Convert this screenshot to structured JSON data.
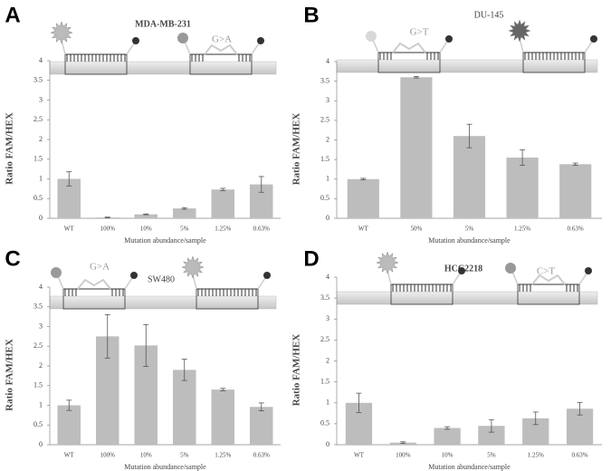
{
  "chart_data": [
    {
      "type": "bar",
      "panel_label": "A",
      "title": "MDA-MB-231",
      "annotation": "G>A",
      "ylabel": "Ratio FAM/HEX",
      "xlabel": "Mutation abundance/sample",
      "categories": [
        "WT",
        "100%",
        "10%",
        "5%",
        "1.25%",
        "0.63%"
      ],
      "values": [
        1.0,
        0.02,
        0.1,
        0.25,
        0.73,
        0.86
      ],
      "errors": [
        0.18,
        0.01,
        0.01,
        0.02,
        0.03,
        0.2
      ],
      "color": "#bdbdbd",
      "ylim": [
        0,
        4
      ],
      "yticks": [
        0,
        0.5,
        1,
        1.5,
        2,
        2.5,
        3,
        3.5,
        4
      ]
    },
    {
      "type": "bar",
      "panel_label": "B",
      "title": "DU-145",
      "annotation": "G>T",
      "ylabel": "Ratio FAM/HEX",
      "xlabel": "Mutation abundance/sample",
      "categories": [
        "WT",
        "50%",
        "5%",
        "1.25%",
        "0.63%"
      ],
      "values": [
        1.0,
        3.6,
        2.1,
        1.55,
        1.38
      ],
      "errors": [
        0.02,
        0.02,
        0.3,
        0.2,
        0.03
      ],
      "color": "#bdbdbd",
      "ylim": [
        0,
        4
      ],
      "yticks": [
        0,
        0.5,
        1,
        1.5,
        2,
        2.5,
        3,
        3.5,
        4
      ]
    },
    {
      "type": "bar",
      "panel_label": "C",
      "title": "SW480",
      "annotation": "G>A",
      "ylabel": "Ratio FAM/HEX",
      "xlabel": "Mutation abundance/sample",
      "categories": [
        "WT",
        "100%",
        "10%",
        "5%",
        "1.25%",
        "0.63%"
      ],
      "values": [
        1.0,
        2.75,
        2.52,
        1.9,
        1.4,
        0.96
      ],
      "errors": [
        0.13,
        0.55,
        0.53,
        0.27,
        0.03,
        0.1
      ],
      "color": "#bdbdbd",
      "ylim": [
        0,
        4
      ],
      "yticks": [
        0,
        0.5,
        1,
        1.5,
        2,
        2.5,
        3,
        3.5,
        4
      ]
    },
    {
      "type": "bar",
      "panel_label": "D",
      "title": "HCC2218",
      "annotation": "C>T",
      "ylabel": "Ratio FAM/HEX",
      "xlabel": "Mutation abundance/sample",
      "categories": [
        "WT",
        "100%",
        "10%",
        "5%",
        "1.25%",
        "0.63%"
      ],
      "values": [
        1.0,
        0.05,
        0.4,
        0.45,
        0.63,
        0.86
      ],
      "errors": [
        0.23,
        0.02,
        0.03,
        0.15,
        0.15,
        0.15
      ],
      "color": "#bdbdbd",
      "ylim": [
        0,
        4
      ],
      "yticks": [
        0,
        0.5,
        1,
        1.5,
        2,
        2.5,
        3,
        3.5,
        4
      ]
    }
  ]
}
